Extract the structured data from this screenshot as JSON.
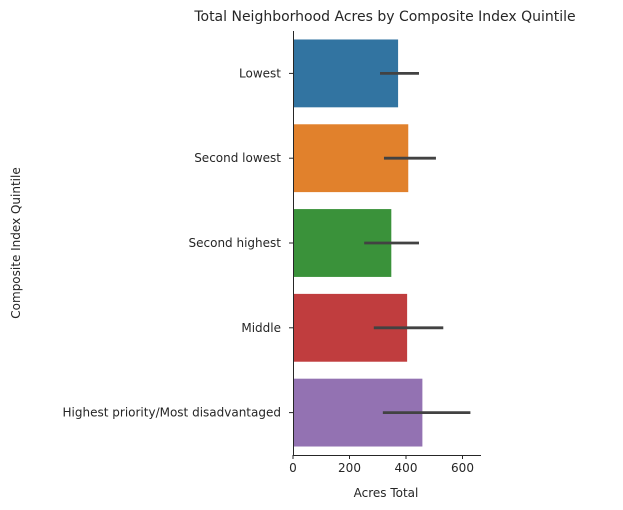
{
  "chart_data": {
    "type": "bar",
    "orientation": "horizontal",
    "title": "Total Neighborhood Acres by Composite Index Quintile",
    "xlabel": "Acres Total",
    "ylabel": "Composite Index Quintile",
    "xlim": [
      0,
      660
    ],
    "xticks": [
      0,
      200,
      400,
      600
    ],
    "grid": false,
    "categories": [
      "Lowest",
      "Second lowest",
      "Second highest",
      "Middle",
      "Highest priority/Most disadvantaged"
    ],
    "values": [
      372,
      408,
      348,
      404,
      458
    ],
    "error_low": [
      308,
      322,
      252,
      286,
      318
    ],
    "error_high": [
      446,
      506,
      446,
      532,
      628
    ],
    "colors": [
      "#3274a1",
      "#e1812c",
      "#3a923a",
      "#c03d3e",
      "#9372b2"
    ],
    "error_color": "#424242"
  }
}
